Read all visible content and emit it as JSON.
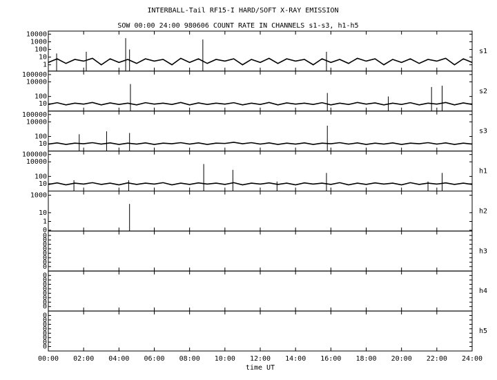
{
  "chart_data": [
    {
      "type": "line",
      "title": "INTERBALL-Tail RF15-I HARD/SOFT X-RAY EMISSION",
      "subtitle": "SOW 00:00 24:00 980606  COUNT RATE IN CHANNELS s1-s3, h1-h5",
      "label": "s1",
      "log_y": true,
      "xlim": [
        0,
        24
      ],
      "ylim": [
        0.15,
        25000
      ],
      "yticks": [
        10000,
        1000,
        100,
        10,
        1
      ],
      "color": "#000000",
      "x": [
        0,
        0.5,
        1,
        1.5,
        2,
        2.5,
        3,
        3.5,
        4,
        4.5,
        5,
        5.5,
        6,
        6.5,
        7,
        7.5,
        8,
        8.5,
        9,
        9.5,
        10,
        10.5,
        11,
        11.5,
        12,
        12.5,
        13,
        13.5,
        14,
        14.5,
        15,
        15.5,
        16,
        16.5,
        17,
        17.5,
        18,
        18.5,
        19,
        19.5,
        20,
        20.5,
        21,
        21.5,
        22,
        22.5,
        23,
        23.5,
        24
      ],
      "values": [
        2,
        6,
        1.5,
        5,
        3,
        7,
        1,
        6,
        2,
        5,
        1.5,
        6,
        3,
        5,
        1,
        7,
        2,
        6,
        1.5,
        5,
        3,
        6,
        1,
        5,
        2,
        7,
        1.5,
        6,
        3,
        5,
        1,
        6,
        2,
        5,
        1.5,
        7,
        3,
        6,
        1,
        5,
        2,
        6,
        1.5,
        5,
        3,
        7,
        1,
        6,
        2
      ],
      "spike_x": [
        0.47,
        2.15,
        4.38,
        4.6,
        8.75,
        15.75
      ],
      "spike_values": [
        30,
        50,
        3000,
        100,
        2000,
        50
      ]
    },
    {
      "type": "line",
      "label": "s2",
      "log_y": true,
      "xlim": [
        0,
        24
      ],
      "ylim": [
        1,
        300000
      ],
      "yticks": [
        100000,
        10000,
        100,
        10
      ],
      "color": "#000000",
      "x": [
        0,
        0.5,
        1,
        1.5,
        2,
        2.5,
        3,
        3.5,
        4,
        4.5,
        5,
        5.5,
        6,
        6.5,
        7,
        7.5,
        8,
        8.5,
        9,
        9.5,
        10,
        10.5,
        11,
        11.5,
        12,
        12.5,
        13,
        13.5,
        14,
        14.5,
        15,
        15.5,
        16,
        16.5,
        17,
        17.5,
        18,
        18.5,
        19,
        19.5,
        20,
        20.5,
        21,
        21.5,
        22,
        22.5,
        23,
        23.5,
        24
      ],
      "values": [
        8,
        14,
        7,
        12,
        9,
        15,
        7,
        13,
        8,
        12,
        7,
        14,
        9,
        12,
        8,
        15,
        7,
        13,
        8,
        12,
        9,
        14,
        7,
        12,
        8,
        15,
        7,
        13,
        9,
        12,
        8,
        14,
        7,
        12,
        8,
        15,
        9,
        13,
        7,
        12,
        8,
        14,
        7,
        12,
        9,
        15,
        7,
        13,
        8
      ],
      "spike_x": [
        4.65,
        15.8,
        19.25,
        21.7,
        22.3
      ],
      "spike_values": [
        5000,
        300,
        100,
        2000,
        3000
      ]
    },
    {
      "type": "line",
      "label": "s3",
      "log_y": true,
      "xlim": [
        0,
        24
      ],
      "ylim": [
        1,
        300000
      ],
      "yticks": [
        100000,
        10000,
        100,
        10
      ],
      "color": "#000000",
      "x": [
        0,
        0.5,
        1,
        1.5,
        2,
        2.5,
        3,
        3.5,
        4,
        4.5,
        5,
        5.5,
        6,
        6.5,
        7,
        7.5,
        8,
        8.5,
        9,
        9.5,
        10,
        10.5,
        11,
        11.5,
        12,
        12.5,
        13,
        13.5,
        14,
        14.5,
        15,
        15.5,
        16,
        16.5,
        17,
        17.5,
        18,
        18.5,
        19,
        19.5,
        20,
        20.5,
        21,
        21.5,
        22,
        22.5,
        23,
        23.5,
        24
      ],
      "values": [
        9,
        13,
        8,
        12,
        10,
        14,
        9,
        13,
        8,
        12,
        9,
        13,
        8,
        12,
        10,
        14,
        9,
        13,
        8,
        12,
        11,
        16,
        10,
        14,
        9,
        13,
        8,
        12,
        9,
        13,
        8,
        12,
        10,
        14,
        9,
        13,
        8,
        12,
        9,
        13,
        8,
        12,
        10,
        14,
        9,
        13,
        8,
        12,
        9
      ],
      "spike_x": [
        1.75,
        3.3,
        4.6,
        15.8
      ],
      "spike_values": [
        200,
        500,
        300,
        3000
      ]
    },
    {
      "type": "line",
      "label": "h1",
      "log_y": true,
      "xlim": [
        0,
        24
      ],
      "ylim": [
        1,
        300000
      ],
      "yticks": [
        100000,
        10000,
        100,
        10
      ],
      "color": "#000000",
      "x": [
        0,
        0.5,
        1,
        1.5,
        2,
        2.5,
        3,
        3.5,
        4,
        4.5,
        5,
        5.5,
        6,
        6.5,
        7,
        7.5,
        8,
        8.5,
        9,
        9.5,
        10,
        10.5,
        11,
        11.5,
        12,
        12.5,
        13,
        13.5,
        14,
        14.5,
        15,
        15.5,
        16,
        16.5,
        17,
        17.5,
        18,
        18.5,
        19,
        19.5,
        20,
        20.5,
        21,
        21.5,
        22,
        22.5,
        23,
        23.5,
        24
      ],
      "values": [
        8,
        13,
        7,
        12,
        9,
        14,
        8,
        12,
        7,
        13,
        8,
        12,
        9,
        14,
        7,
        12,
        8,
        13,
        9,
        12,
        8,
        14,
        7,
        12,
        9,
        13,
        8,
        12,
        7,
        13,
        9,
        12,
        8,
        14,
        7,
        12,
        8,
        13,
        9,
        12,
        7,
        14,
        8,
        12,
        9,
        13,
        8,
        12,
        8
      ],
      "spike_x": [
        1.45,
        4.55,
        8.8,
        10.45,
        12.95,
        15.75,
        21.5,
        22.3
      ],
      "spike_values": [
        30,
        30,
        5000,
        800,
        20,
        300,
        20,
        300
      ]
    },
    {
      "type": "line",
      "label": "h2",
      "log_y": true,
      "xlim": [
        0,
        24
      ],
      "ylim": [
        0.08,
        3000
      ],
      "yticks": [
        1000,
        10,
        1,
        {
          "value": 0.1,
          "label": "0"
        }
      ],
      "color": "#000000",
      "spike_x": [
        4.6
      ],
      "spike_values": [
        100
      ]
    },
    {
      "type": "line",
      "label": "h3",
      "log_y": false,
      "xlim": [
        0,
        24
      ],
      "ylim": [
        0,
        0.45
      ],
      "yticks": [
        {
          "value": 0.05,
          "label": "0"
        },
        {
          "value": 0.1,
          "label": "0"
        },
        {
          "value": 0.15,
          "label": "0"
        },
        {
          "value": 0.2,
          "label": "0"
        },
        {
          "value": 0.25,
          "label": "0"
        },
        {
          "value": 0.3,
          "label": "0"
        },
        {
          "value": 0.35,
          "label": "0"
        },
        {
          "value": 0.4,
          "label": "0"
        }
      ]
    },
    {
      "type": "line",
      "label": "h4",
      "log_y": false,
      "xlim": [
        0,
        24
      ],
      "ylim": [
        0,
        0.45
      ],
      "yticks": [
        {
          "value": 0.05,
          "label": "0"
        },
        {
          "value": 0.1,
          "label": "0"
        },
        {
          "value": 0.15,
          "label": "0"
        },
        {
          "value": 0.2,
          "label": "0"
        },
        {
          "value": 0.25,
          "label": "0"
        },
        {
          "value": 0.3,
          "label": "0"
        },
        {
          "value": 0.35,
          "label": "0"
        },
        {
          "value": 0.4,
          "label": "0"
        }
      ]
    },
    {
      "type": "line",
      "label": "h5",
      "log_y": false,
      "xlim": [
        0,
        24
      ],
      "ylim": [
        0,
        0.45
      ],
      "xlabel": "time UT",
      "yticks": [
        {
          "value": 0.05,
          "label": "0"
        },
        {
          "value": 0.1,
          "label": "0"
        },
        {
          "value": 0.15,
          "label": "0"
        },
        {
          "value": 0.2,
          "label": "0"
        },
        {
          "value": 0.25,
          "label": "0"
        },
        {
          "value": 0.3,
          "label": "0"
        },
        {
          "value": 0.35,
          "label": "0"
        },
        {
          "value": 0.4,
          "label": "0"
        }
      ],
      "xticks": [
        {
          "value": 0,
          "label": "00:00"
        },
        {
          "value": 2,
          "label": "02:00"
        },
        {
          "value": 4,
          "label": "04:00"
        },
        {
          "value": 6,
          "label": "06:00"
        },
        {
          "value": 8,
          "label": "08:00"
        },
        {
          "value": 10,
          "label": "10:00"
        },
        {
          "value": 12,
          "label": "12:00"
        },
        {
          "value": 14,
          "label": "14:00"
        },
        {
          "value": 16,
          "label": "16:00"
        },
        {
          "value": 18,
          "label": "18:00"
        },
        {
          "value": 20,
          "label": "20:00"
        },
        {
          "value": 22,
          "label": "22:00"
        },
        {
          "value": 24,
          "label": "24:00"
        }
      ]
    }
  ]
}
